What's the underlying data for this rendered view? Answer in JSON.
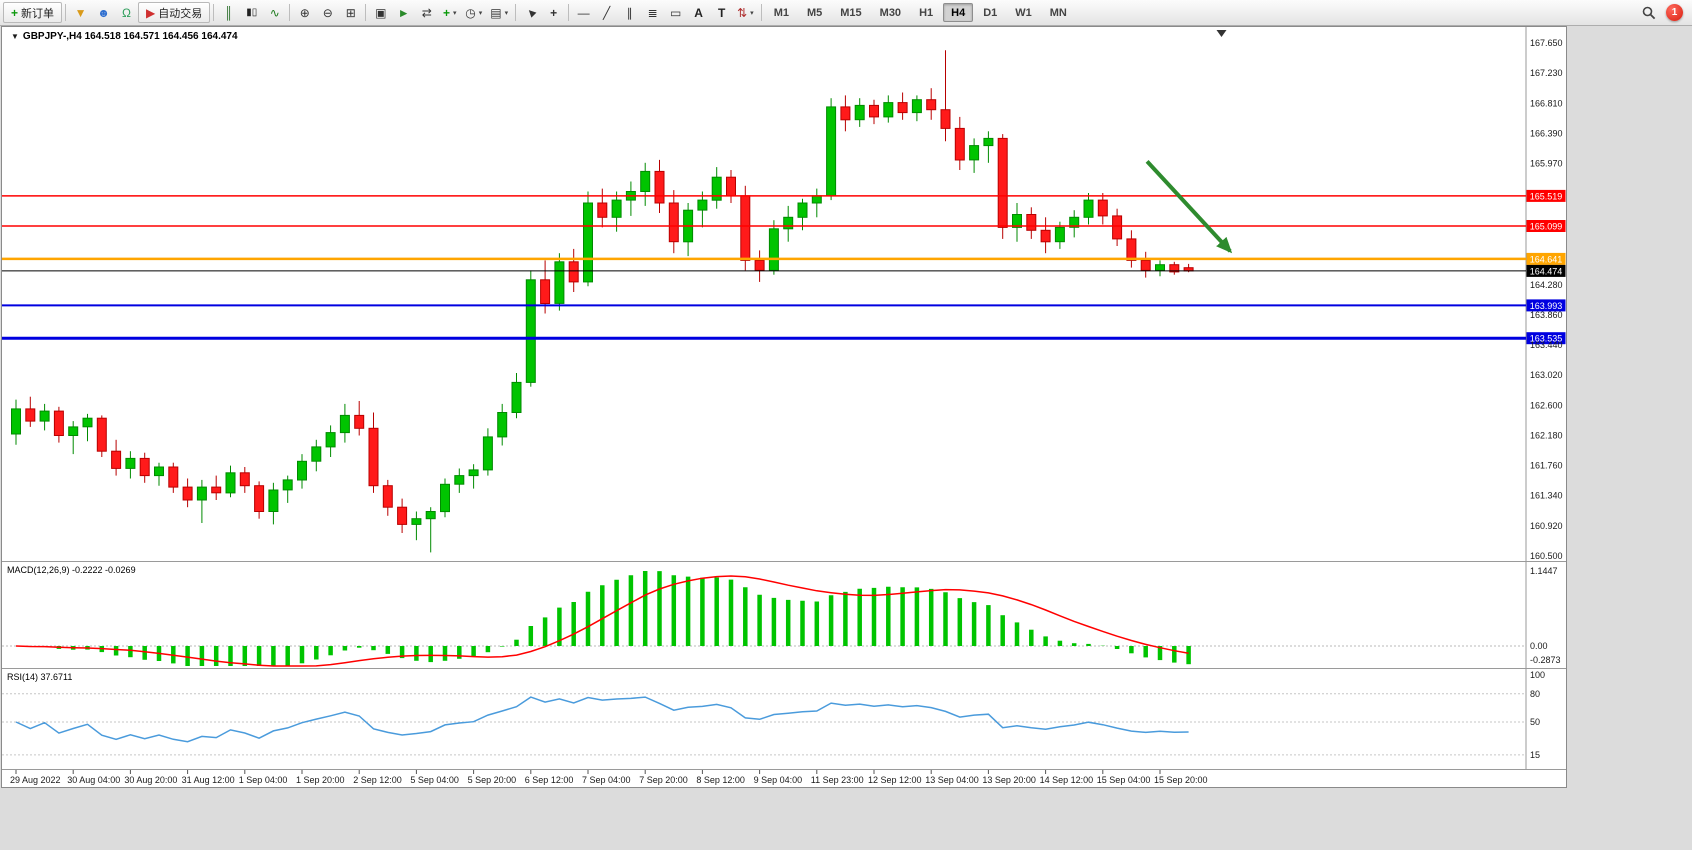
{
  "toolbar": {
    "groups": [
      {
        "items": [
          {
            "icon": "new-order-icon",
            "label": "新订单",
            "name": "new-order-button"
          }
        ]
      },
      {
        "items": [
          {
            "icon": "funnel-icon",
            "name": "funnel-button"
          },
          {
            "icon": "user-icon",
            "name": "community-button"
          },
          {
            "icon": "headset-icon",
            "name": "support-button"
          },
          {
            "icon": "autotrading-icon",
            "label": "自动交易",
            "name": "autotrading-button"
          }
        ]
      },
      {
        "items": [
          {
            "icon": "bar-chart-icon",
            "name": "bar-chart-button"
          },
          {
            "icon": "candlestick-icon",
            "name": "candlestick-chart-button"
          },
          {
            "icon": "line-chart-icon",
            "name": "line-chart-button"
          }
        ]
      },
      {
        "items": [
          {
            "icon": "zoom-in-icon",
            "name": "zoom-in-button"
          },
          {
            "icon": "zoom-out-icon",
            "name": "zoom-out-button"
          },
          {
            "icon": "tile-windows-icon",
            "name": "tile-windows-button"
          }
        ]
      },
      {
        "items": [
          {
            "icon": "new-chart-icon",
            "name": "new-chart-button"
          },
          {
            "icon": "auto-scroll-icon",
            "name": "auto-scroll-button"
          },
          {
            "icon": "chart-shift-icon",
            "name": "chart-shift-button"
          },
          {
            "icon": "indicators-icon",
            "name": "indicators-button",
            "dropdown": true
          },
          {
            "icon": "periods-icon",
            "name": "periods-button",
            "dropdown": true
          },
          {
            "icon": "templates-icon",
            "name": "templates-button",
            "dropdown": true
          }
        ]
      },
      {
        "items": [
          {
            "icon": "cursor-icon",
            "name": "cursor-button"
          },
          {
            "icon": "crosshair-icon",
            "name": "crosshair-button"
          }
        ]
      },
      {
        "items": [
          {
            "icon": "horizontal-line-icon",
            "name": "horizontal-line-button"
          },
          {
            "icon": "trendline-icon",
            "name": "trendline-button"
          },
          {
            "icon": "equidistant-channel-icon",
            "name": "equidistant-channel-button"
          },
          {
            "icon": "fibonacci-icon",
            "name": "fibonacci-button"
          },
          {
            "icon": "shapes-icon",
            "name": "shapes-button"
          },
          {
            "icon": "text-icon",
            "name": "text-button"
          },
          {
            "icon": "text-label-icon",
            "name": "text-label-button"
          },
          {
            "icon": "arrows-icon",
            "name": "arrow-objects-button",
            "dropdown": true
          }
        ]
      }
    ],
    "timeframes": [
      "M1",
      "M5",
      "M15",
      "M30",
      "H1",
      "H4",
      "D1",
      "W1",
      "MN"
    ],
    "active_timeframe": "H4",
    "notification_count": "1"
  },
  "chart_data": {
    "type": "candlestick",
    "symbol": "GBPJPY-",
    "timeframe": "H4",
    "title_text": "GBPJPY-,H4  164.518 164.571 164.456 164.474",
    "ohlc": {
      "open": 164.518,
      "high": 164.571,
      "low": 164.456,
      "close": 164.474
    },
    "price_axis": {
      "min": 160.5,
      "max": 167.65,
      "labels": [
        "167.650",
        "167.230",
        "166.810",
        "166.390",
        "165.970",
        "164.280",
        "163.860",
        "163.440",
        "163.020",
        "162.600",
        "162.180",
        "161.760",
        "161.340",
        "160.920",
        "160.500"
      ]
    },
    "time_labels": [
      "29 Aug 2022",
      "30 Aug 04:00",
      "30 Aug 20:00",
      "31 Aug 12:00",
      "1 Sep 04:00",
      "1 Sep 20:00",
      "2 Sep 12:00",
      "5 Sep 04:00",
      "5 Sep 20:00",
      "6 Sep 12:00",
      "7 Sep 04:00",
      "7 Sep 20:00",
      "8 Sep 12:00",
      "9 Sep 04:00",
      "11 Sep 23:00",
      "12 Sep 12:00",
      "13 Sep 04:00",
      "13 Sep 20:00",
      "14 Sep 12:00",
      "15 Sep 04:00",
      "15 Sep 20:00"
    ],
    "label_every_n_candles": 4,
    "colors": {
      "up": "#00C400",
      "down": "#FF1A1A",
      "up_border": "#008A00",
      "down_border": "#B80000",
      "background": "#FFFFFF"
    },
    "candles": [
      [
        162.2,
        162.68,
        162.05,
        162.55
      ],
      [
        162.55,
        162.72,
        162.3,
        162.38
      ],
      [
        162.38,
        162.62,
        162.25,
        162.52
      ],
      [
        162.52,
        162.58,
        162.08,
        162.18
      ],
      [
        162.18,
        162.38,
        161.92,
        162.3
      ],
      [
        162.3,
        162.48,
        162.1,
        162.42
      ],
      [
        162.42,
        162.46,
        161.88,
        161.96
      ],
      [
        161.96,
        162.12,
        161.62,
        161.72
      ],
      [
        161.72,
        161.96,
        161.58,
        161.86
      ],
      [
        161.86,
        161.94,
        161.52,
        161.62
      ],
      [
        161.62,
        161.8,
        161.48,
        161.74
      ],
      [
        161.74,
        161.8,
        161.38,
        161.46
      ],
      [
        161.46,
        161.58,
        161.18,
        161.28
      ],
      [
        161.28,
        161.56,
        160.96,
        161.46
      ],
      [
        161.46,
        161.62,
        161.28,
        161.38
      ],
      [
        161.38,
        161.76,
        161.32,
        161.66
      ],
      [
        161.66,
        161.74,
        161.38,
        161.48
      ],
      [
        161.48,
        161.54,
        161.02,
        161.12
      ],
      [
        161.12,
        161.52,
        160.94,
        161.42
      ],
      [
        161.42,
        161.62,
        161.24,
        161.56
      ],
      [
        161.56,
        161.92,
        161.44,
        161.82
      ],
      [
        161.82,
        162.12,
        161.68,
        162.02
      ],
      [
        162.02,
        162.32,
        161.88,
        162.22
      ],
      [
        162.22,
        162.62,
        162.08,
        162.46
      ],
      [
        162.46,
        162.66,
        162.18,
        162.28
      ],
      [
        162.28,
        162.5,
        161.38,
        161.48
      ],
      [
        161.48,
        161.56,
        161.06,
        161.18
      ],
      [
        161.18,
        161.3,
        160.82,
        160.94
      ],
      [
        160.94,
        161.12,
        160.72,
        161.02
      ],
      [
        161.02,
        161.18,
        160.55,
        161.12
      ],
      [
        161.12,
        161.58,
        161.04,
        161.5
      ],
      [
        161.5,
        161.72,
        161.38,
        161.62
      ],
      [
        161.62,
        161.78,
        161.44,
        161.7
      ],
      [
        161.7,
        162.28,
        161.62,
        162.16
      ],
      [
        162.16,
        162.62,
        162.04,
        162.5
      ],
      [
        162.5,
        163.05,
        162.42,
        162.92
      ],
      [
        162.92,
        164.48,
        162.86,
        164.35
      ],
      [
        164.35,
        164.62,
        163.88,
        164.02
      ],
      [
        164.02,
        164.72,
        163.92,
        164.6
      ],
      [
        164.6,
        164.78,
        164.18,
        164.32
      ],
      [
        164.32,
        165.58,
        164.26,
        165.42
      ],
      [
        165.42,
        165.62,
        165.08,
        165.22
      ],
      [
        165.22,
        165.58,
        165.02,
        165.46
      ],
      [
        165.46,
        165.72,
        165.24,
        165.58
      ],
      [
        165.58,
        165.98,
        165.38,
        165.86
      ],
      [
        165.86,
        166.02,
        165.28,
        165.42
      ],
      [
        165.42,
        165.6,
        164.72,
        164.88
      ],
      [
        164.88,
        165.42,
        164.68,
        165.32
      ],
      [
        165.32,
        165.58,
        165.08,
        165.46
      ],
      [
        165.46,
        165.92,
        165.34,
        165.78
      ],
      [
        165.78,
        165.88,
        165.42,
        165.52
      ],
      [
        165.52,
        165.66,
        164.48,
        164.62
      ],
      [
        164.62,
        164.76,
        164.32,
        164.48
      ],
      [
        164.48,
        165.18,
        164.42,
        165.06
      ],
      [
        165.06,
        165.38,
        164.88,
        165.22
      ],
      [
        165.22,
        165.48,
        165.04,
        165.42
      ],
      [
        165.42,
        165.62,
        165.22,
        165.52
      ],
      [
        165.52,
        166.88,
        165.46,
        166.76
      ],
      [
        166.76,
        166.92,
        166.42,
        166.58
      ],
      [
        166.58,
        166.88,
        166.48,
        166.78
      ],
      [
        166.78,
        166.86,
        166.52,
        166.62
      ],
      [
        166.62,
        166.92,
        166.54,
        166.82
      ],
      [
        166.82,
        166.96,
        166.58,
        166.68
      ],
      [
        166.68,
        166.92,
        166.56,
        166.86
      ],
      [
        166.86,
        167.02,
        166.58,
        166.72
      ],
      [
        166.72,
        167.55,
        166.28,
        166.46
      ],
      [
        166.46,
        166.62,
        165.88,
        166.02
      ],
      [
        166.02,
        166.32,
        165.84,
        166.22
      ],
      [
        166.22,
        166.42,
        165.98,
        166.32
      ],
      [
        166.32,
        166.38,
        164.92,
        165.08
      ],
      [
        165.08,
        165.42,
        164.88,
        165.26
      ],
      [
        165.26,
        165.36,
        164.92,
        165.04
      ],
      [
        165.04,
        165.22,
        164.72,
        164.88
      ],
      [
        164.88,
        165.16,
        164.78,
        165.08
      ],
      [
        165.08,
        165.32,
        164.94,
        165.22
      ],
      [
        165.22,
        165.56,
        165.12,
        165.46
      ],
      [
        165.46,
        165.56,
        165.12,
        165.24
      ],
      [
        165.24,
        165.34,
        164.82,
        164.92
      ],
      [
        164.92,
        165.04,
        164.52,
        164.62
      ],
      [
        164.62,
        164.74,
        164.38,
        164.48
      ],
      [
        164.48,
        164.62,
        164.4,
        164.56
      ],
      [
        164.56,
        164.6,
        164.42,
        164.46
      ],
      [
        164.518,
        164.571,
        164.456,
        164.474
      ]
    ],
    "levels": [
      {
        "value": 165.519,
        "label": "165.519",
        "color": "#FF0000",
        "width": 1.5
      },
      {
        "value": 165.099,
        "label": "165.099",
        "color": "#FF0000",
        "width": 1.5
      },
      {
        "value": 164.641,
        "label": "164.641",
        "color": "#FFA500",
        "width": 2.5
      },
      {
        "value": 163.993,
        "label": "163.993",
        "color": "#0000E0",
        "width": 2
      },
      {
        "value": 163.535,
        "label": "163.535",
        "color": "#0000E0",
        "width": 3
      }
    ],
    "current_price": {
      "value": 164.474,
      "label": "164.474",
      "color": "#000000"
    },
    "trend_arrow": {
      "x1_index": 79.1,
      "y1_price": 166.0,
      "x2_index": 84.9,
      "y2_price": 164.75,
      "color": "#2E8B2E"
    },
    "shift_marker_index": 84.3,
    "indicators": {
      "macd": {
        "label": "MACD(12,26,9) -0.2222 -0.0269",
        "params": [
          12,
          26,
          9
        ],
        "main_value": -0.2222,
        "signal_value": -0.0269,
        "scale_labels": [
          "1.1447",
          "0.00",
          "-0.2873"
        ],
        "histogram_color": "#00C400",
        "signal_color": "#FF0000"
      },
      "rsi": {
        "label": "RSI(14) 37.6711",
        "period": 14,
        "value": 37.6711,
        "scale_labels": [
          "100",
          "80",
          "50",
          "15"
        ],
        "level_lines": [
          80,
          50,
          15
        ],
        "line_color": "#4A9BDC"
      }
    }
  }
}
